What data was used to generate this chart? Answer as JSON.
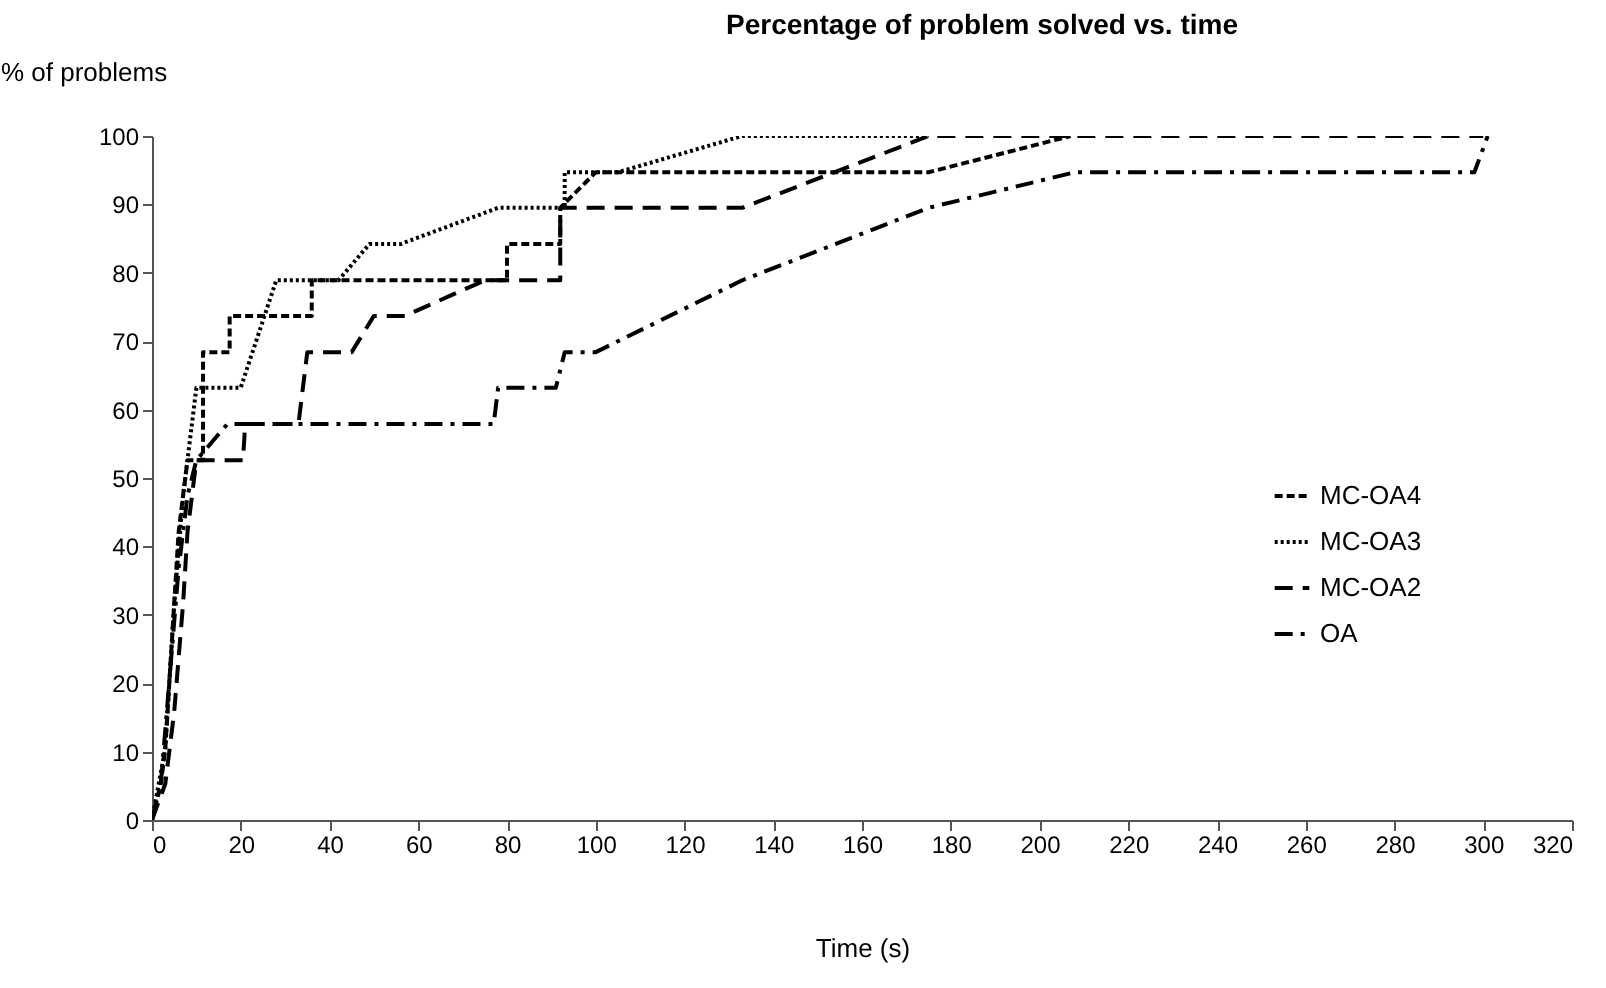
{
  "chart_data": {
    "type": "line",
    "title": "Percentage of problem solved vs. time",
    "xlabel": "Time (s)",
    "ylabel": "% of problems",
    "xlim": [
      0,
      320
    ],
    "xticks": [
      0,
      20,
      40,
      60,
      80,
      100,
      120,
      140,
      160,
      180,
      200,
      220,
      240,
      260,
      280,
      300,
      320
    ],
    "ylim": [
      0,
      100
    ],
    "yticks": [
      0,
      10,
      20,
      30,
      40,
      50,
      60,
      70,
      80,
      90,
      100
    ],
    "grid": false,
    "legend": "right",
    "marker": "none",
    "series": [
      {
        "name": "MC-OA4",
        "color": "#000000",
        "line_style": "dashed",
        "x": [
          0,
          2,
          3,
          4,
          5,
          6,
          7,
          8,
          9,
          11.5,
          11.5,
          17.5,
          17.5,
          36,
          36,
          80,
          80,
          92,
          92,
          100,
          175,
          207
        ],
        "values": [
          0,
          5.3,
          10.5,
          21.1,
          31.6,
          42.1,
          47.4,
          52.6,
          52.6,
          52.6,
          68.4,
          68.4,
          73.7,
          73.7,
          78.9,
          78.9,
          84.2,
          84.2,
          89.5,
          94.7,
          94.7,
          100
        ]
      },
      {
        "name": "MC-OA3",
        "color": "#000000",
        "line_style": "dotted",
        "x": [
          0,
          3,
          5,
          7,
          9,
          10,
          12,
          20,
          28,
          42,
          49,
          56,
          78,
          93,
          93,
          105,
          133,
          175
        ],
        "values": [
          0,
          10.5,
          31.6,
          47.4,
          57.9,
          63.2,
          63.2,
          63.2,
          78.9,
          78.9,
          84.2,
          84.2,
          89.5,
          89.5,
          94.7,
          94.7,
          100,
          100
        ]
      },
      {
        "name": "MC-OA2",
        "color": "#000000",
        "line_style": "longdash",
        "x": [
          0,
          3,
          5,
          7,
          8,
          10,
          12,
          20.5,
          21,
          33,
          35,
          45,
          50,
          57,
          75,
          92,
          92,
          133,
          175,
          300
        ],
        "values": [
          0,
          5.3,
          15.8,
          31.6,
          42.1,
          52.6,
          52.6,
          52.6,
          57.9,
          57.9,
          68.4,
          68.4,
          73.7,
          73.7,
          78.9,
          78.9,
          89.5,
          89.5,
          100,
          100
        ]
      },
      {
        "name": "OA",
        "color": "#000000",
        "line_style": "dashdot",
        "x": [
          0,
          2,
          4,
          6,
          8,
          10,
          17,
          77,
          78,
          91,
          93,
          100,
          133,
          175,
          208,
          298,
          301
        ],
        "values": [
          0,
          5.3,
          21.1,
          36.8,
          47.4,
          52.6,
          57.9,
          57.9,
          63.2,
          63.2,
          68.4,
          68.4,
          78.9,
          89.5,
          94.7,
          94.7,
          100
        ]
      }
    ]
  }
}
